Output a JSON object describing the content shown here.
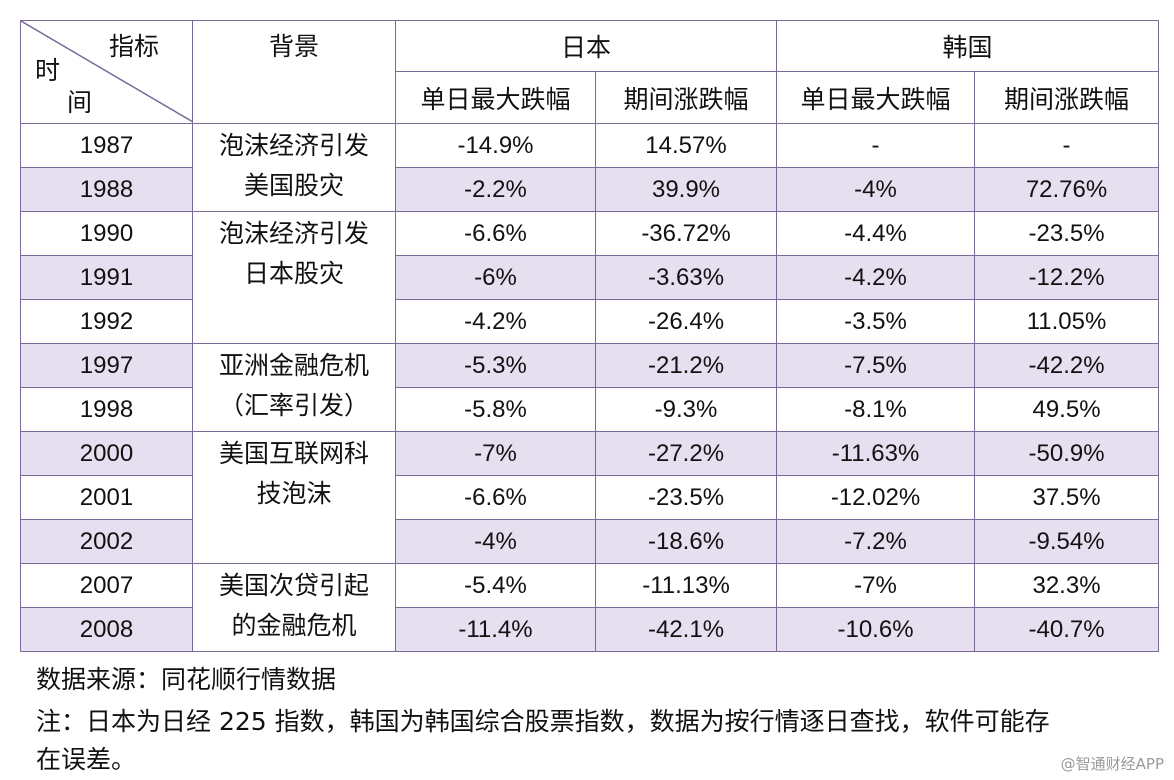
{
  "table": {
    "corner": {
      "top": "指标",
      "bottom_line1": "时",
      "bottom_line2": "间"
    },
    "header": {
      "background": "背景",
      "japan": "日本",
      "korea": "韩国",
      "sub": [
        "单日最大跌幅",
        "期间涨跌幅",
        "单日最大跌幅",
        "期间涨跌幅"
      ]
    },
    "backgrounds": [
      {
        "line1": "泡沫经济引发",
        "line2": "美国股灾"
      },
      {
        "line1": "泡沫经济引发",
        "line2": "日本股灾"
      },
      {
        "line1": "亚洲金融危机",
        "line2": "（汇率引发）"
      },
      {
        "line1": "美国互联网科",
        "line2": "技泡沫"
      },
      {
        "line1": "美国次贷引起",
        "line2": "的金融危机"
      }
    ],
    "rows": [
      {
        "year": "1987",
        "jp_day": "-14.9%",
        "jp_period": "14.57%",
        "kr_day": "-",
        "kr_period": "-"
      },
      {
        "year": "1988",
        "jp_day": "-2.2%",
        "jp_period": "39.9%",
        "kr_day": "-4%",
        "kr_period": "72.76%"
      },
      {
        "year": "1990",
        "jp_day": "-6.6%",
        "jp_period": "-36.72%",
        "kr_day": "-4.4%",
        "kr_period": "-23.5%"
      },
      {
        "year": "1991",
        "jp_day": "-6%",
        "jp_period": "-3.63%",
        "kr_day": "-4.2%",
        "kr_period": "-12.2%"
      },
      {
        "year": "1992",
        "jp_day": "-4.2%",
        "jp_period": "-26.4%",
        "kr_day": "-3.5%",
        "kr_period": "11.05%"
      },
      {
        "year": "1997",
        "jp_day": "-5.3%",
        "jp_period": "-21.2%",
        "kr_day": "-7.5%",
        "kr_period": "-42.2%"
      },
      {
        "year": "1998",
        "jp_day": "-5.8%",
        "jp_period": "-9.3%",
        "kr_day": "-8.1%",
        "kr_period": "49.5%"
      },
      {
        "year": "2000",
        "jp_day": "-7%",
        "jp_period": "-27.2%",
        "kr_day": "-11.63%",
        "kr_period": "-50.9%"
      },
      {
        "year": "2001",
        "jp_day": "-6.6%",
        "jp_period": "-23.5%",
        "kr_day": "-12.02%",
        "kr_period": "37.5%"
      },
      {
        "year": "2002",
        "jp_day": "-4%",
        "jp_period": "-18.6%",
        "kr_day": "-7.2%",
        "kr_period": "-9.54%"
      },
      {
        "year": "2007",
        "jp_day": "-5.4%",
        "jp_period": "-11.13%",
        "kr_day": "-7%",
        "kr_period": "32.3%"
      },
      {
        "year": "2008",
        "jp_day": "-11.4%",
        "jp_period": "-42.1%",
        "kr_day": "-10.6%",
        "kr_period": "-40.7%"
      }
    ]
  },
  "notes": {
    "source": "数据来源：同花顺行情数据",
    "note_line1": "注：日本为日经 225 指数，韩国为韩国综合股票指数，数据为按行情逐日查找，软件可能存",
    "note_line2": "在误差。"
  },
  "watermark": "@智通财经APP",
  "colors": {
    "border": "#7b6a99",
    "row_shade": "#e6dff0",
    "text": "#111111"
  }
}
